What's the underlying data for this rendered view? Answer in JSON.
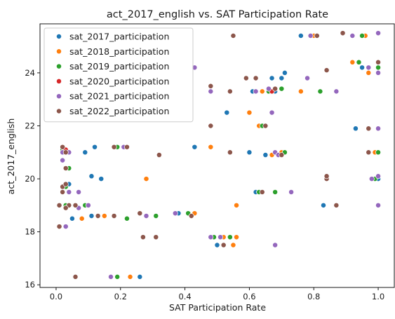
{
  "chart_data": {
    "type": "scatter",
    "title": "act_2017_english vs. SAT Participation Rate",
    "xlabel": "SAT Participation Rate",
    "ylabel": "act_2017_english",
    "xlim": [
      -0.05,
      1.05
    ],
    "ylim": [
      15.9,
      25.85
    ],
    "xticks": [
      0.0,
      0.2,
      0.4,
      0.6,
      0.8,
      1.0
    ],
    "xtick_labels": [
      "0.0",
      "0.2",
      "0.4",
      "0.6",
      "0.8",
      "1.0"
    ],
    "yticks": [
      16,
      18,
      20,
      22,
      24
    ],
    "ytick_labels": [
      "16",
      "18",
      "20",
      "22",
      "24"
    ],
    "grid": false,
    "legend_position": "top-left",
    "series": [
      {
        "name": "sat_2017_participation",
        "color": "#1f77b4",
        "points": [
          [
            0.05,
            18.5
          ],
          [
            0.02,
            21.2
          ],
          [
            0.09,
            21.0
          ],
          [
            0.12,
            21.2
          ],
          [
            0.11,
            20.1
          ],
          [
            0.14,
            20.0
          ],
          [
            0.03,
            18.9
          ],
          [
            0.11,
            18.6
          ],
          [
            0.26,
            16.3
          ],
          [
            0.38,
            18.7
          ],
          [
            0.43,
            21.2
          ],
          [
            0.49,
            17.8
          ],
          [
            0.5,
            17.5
          ],
          [
            0.53,
            22.5
          ],
          [
            0.6,
            21.0
          ],
          [
            0.61,
            23.3
          ],
          [
            0.62,
            19.5
          ],
          [
            0.65,
            20.9
          ],
          [
            0.67,
            23.8
          ],
          [
            0.68,
            23.3
          ],
          [
            0.7,
            23.8
          ],
          [
            0.71,
            24.0
          ],
          [
            0.76,
            25.4
          ],
          [
            0.83,
            19.0
          ],
          [
            0.93,
            21.9
          ],
          [
            0.95,
            24.2
          ],
          [
            0.96,
            25.4
          ],
          [
            1.0,
            24.0
          ],
          [
            1.0,
            20.0
          ],
          [
            1.0,
            19.0
          ],
          [
            0.02,
            19.5
          ],
          [
            0.04,
            19.8
          ],
          [
            0.03,
            18.2
          ],
          [
            0.01,
            19.0
          ]
        ]
      },
      {
        "name": "sat_2018_participation",
        "color": "#ff7f0e",
        "points": [
          [
            0.03,
            18.9
          ],
          [
            0.08,
            18.5
          ],
          [
            0.15,
            18.6
          ],
          [
            0.28,
            20.0
          ],
          [
            0.23,
            16.3
          ],
          [
            0.43,
            18.7
          ],
          [
            0.48,
            21.2
          ],
          [
            0.52,
            17.8
          ],
          [
            0.55,
            17.5
          ],
          [
            0.56,
            19.0
          ],
          [
            0.56,
            17.8
          ],
          [
            0.6,
            22.5
          ],
          [
            0.63,
            22.0
          ],
          [
            0.63,
            19.5
          ],
          [
            0.64,
            23.3
          ],
          [
            0.67,
            20.9
          ],
          [
            0.7,
            21.0
          ],
          [
            0.76,
            23.3
          ],
          [
            0.8,
            25.4
          ],
          [
            0.92,
            24.4
          ],
          [
            0.96,
            25.4
          ],
          [
            0.97,
            24.0
          ],
          [
            0.99,
            21.0
          ],
          [
            1.0,
            24.2
          ],
          [
            0.02,
            19.5
          ],
          [
            0.03,
            20.4
          ],
          [
            0.02,
            19.7
          ]
        ]
      },
      {
        "name": "sat_2019_participation",
        "color": "#2ca02c",
        "points": [
          [
            0.03,
            19.0
          ],
          [
            0.09,
            19.0
          ],
          [
            0.19,
            21.2
          ],
          [
            0.19,
            16.3
          ],
          [
            0.22,
            18.5
          ],
          [
            0.31,
            18.6
          ],
          [
            0.41,
            18.7
          ],
          [
            0.49,
            17.8
          ],
          [
            0.54,
            17.8
          ],
          [
            0.63,
            19.5
          ],
          [
            0.64,
            22.0
          ],
          [
            0.66,
            23.3
          ],
          [
            0.68,
            19.5
          ],
          [
            0.7,
            23.4
          ],
          [
            0.71,
            21.0
          ],
          [
            0.82,
            23.3
          ],
          [
            0.94,
            24.4
          ],
          [
            0.95,
            25.4
          ],
          [
            0.99,
            20.0
          ],
          [
            1.0,
            21.0
          ],
          [
            1.0,
            24.2
          ],
          [
            0.03,
            19.7
          ],
          [
            0.02,
            21.1
          ],
          [
            0.04,
            20.4
          ]
        ]
      },
      {
        "name": "sat_2020_participation",
        "color": "#d62728",
        "points": [
          [
            0.03,
            21.1
          ],
          [
            0.67,
            23.3
          ]
        ]
      },
      {
        "name": "sat_2021_participation",
        "color": "#9467bd",
        "points": [
          [
            0.02,
            19.5
          ],
          [
            0.03,
            18.2
          ],
          [
            0.04,
            19.0
          ],
          [
            0.04,
            19.5
          ],
          [
            0.02,
            20.7
          ],
          [
            0.02,
            21.0
          ],
          [
            0.07,
            18.9
          ],
          [
            0.07,
            19.5
          ],
          [
            0.1,
            19.0
          ],
          [
            0.17,
            16.3
          ],
          [
            0.21,
            21.2
          ],
          [
            0.28,
            18.6
          ],
          [
            0.37,
            18.7
          ],
          [
            0.48,
            17.8
          ],
          [
            0.48,
            23.3
          ],
          [
            0.51,
            17.8
          ],
          [
            0.59,
            23.8
          ],
          [
            0.62,
            23.3
          ],
          [
            0.66,
            23.4
          ],
          [
            0.67,
            22.5
          ],
          [
            0.68,
            21.0
          ],
          [
            0.68,
            17.5
          ],
          [
            0.69,
            20.9
          ],
          [
            0.73,
            19.5
          ],
          [
            0.78,
            23.8
          ],
          [
            0.79,
            25.4
          ],
          [
            0.87,
            23.3
          ],
          [
            0.92,
            25.4
          ],
          [
            0.97,
            24.2
          ],
          [
            0.98,
            20.0
          ],
          [
            1.0,
            24.0
          ],
          [
            1.0,
            25.5
          ],
          [
            1.0,
            21.9
          ],
          [
            1.0,
            20.1
          ],
          [
            1.0,
            19.0
          ],
          [
            0.04,
            21.0
          ],
          [
            0.43,
            24.2
          ]
        ]
      },
      {
        "name": "sat_2022_participation",
        "color": "#8c564b",
        "points": [
          [
            0.01,
            19.0
          ],
          [
            0.01,
            18.2
          ],
          [
            0.02,
            19.7
          ],
          [
            0.02,
            19.5
          ],
          [
            0.02,
            21.2
          ],
          [
            0.03,
            21.0
          ],
          [
            0.03,
            19.8
          ],
          [
            0.03,
            20.4
          ],
          [
            0.04,
            19.0
          ],
          [
            0.06,
            16.3
          ],
          [
            0.06,
            19.0
          ],
          [
            0.13,
            18.6
          ],
          [
            0.18,
            18.6
          ],
          [
            0.18,
            21.2
          ],
          [
            0.22,
            21.2
          ],
          [
            0.26,
            18.7
          ],
          [
            0.27,
            17.8
          ],
          [
            0.31,
            17.8
          ],
          [
            0.32,
            20.9
          ],
          [
            0.42,
            18.6
          ],
          [
            0.48,
            23.5
          ],
          [
            0.48,
            22.0
          ],
          [
            0.52,
            17.5
          ],
          [
            0.54,
            21.0
          ],
          [
            0.54,
            23.3
          ],
          [
            0.55,
            25.4
          ],
          [
            0.59,
            23.8
          ],
          [
            0.62,
            23.8
          ],
          [
            0.64,
            19.5
          ],
          [
            0.65,
            22.0
          ],
          [
            0.68,
            23.4
          ],
          [
            0.7,
            20.9
          ],
          [
            0.81,
            25.4
          ],
          [
            0.84,
            24.1
          ],
          [
            0.84,
            20.0
          ],
          [
            0.84,
            20.1
          ],
          [
            0.87,
            19.0
          ],
          [
            0.89,
            25.5
          ],
          [
            0.97,
            21.9
          ],
          [
            0.97,
            21.0
          ],
          [
            1.0,
            24.4
          ],
          [
            0.03,
            18.9
          ]
        ]
      }
    ]
  }
}
